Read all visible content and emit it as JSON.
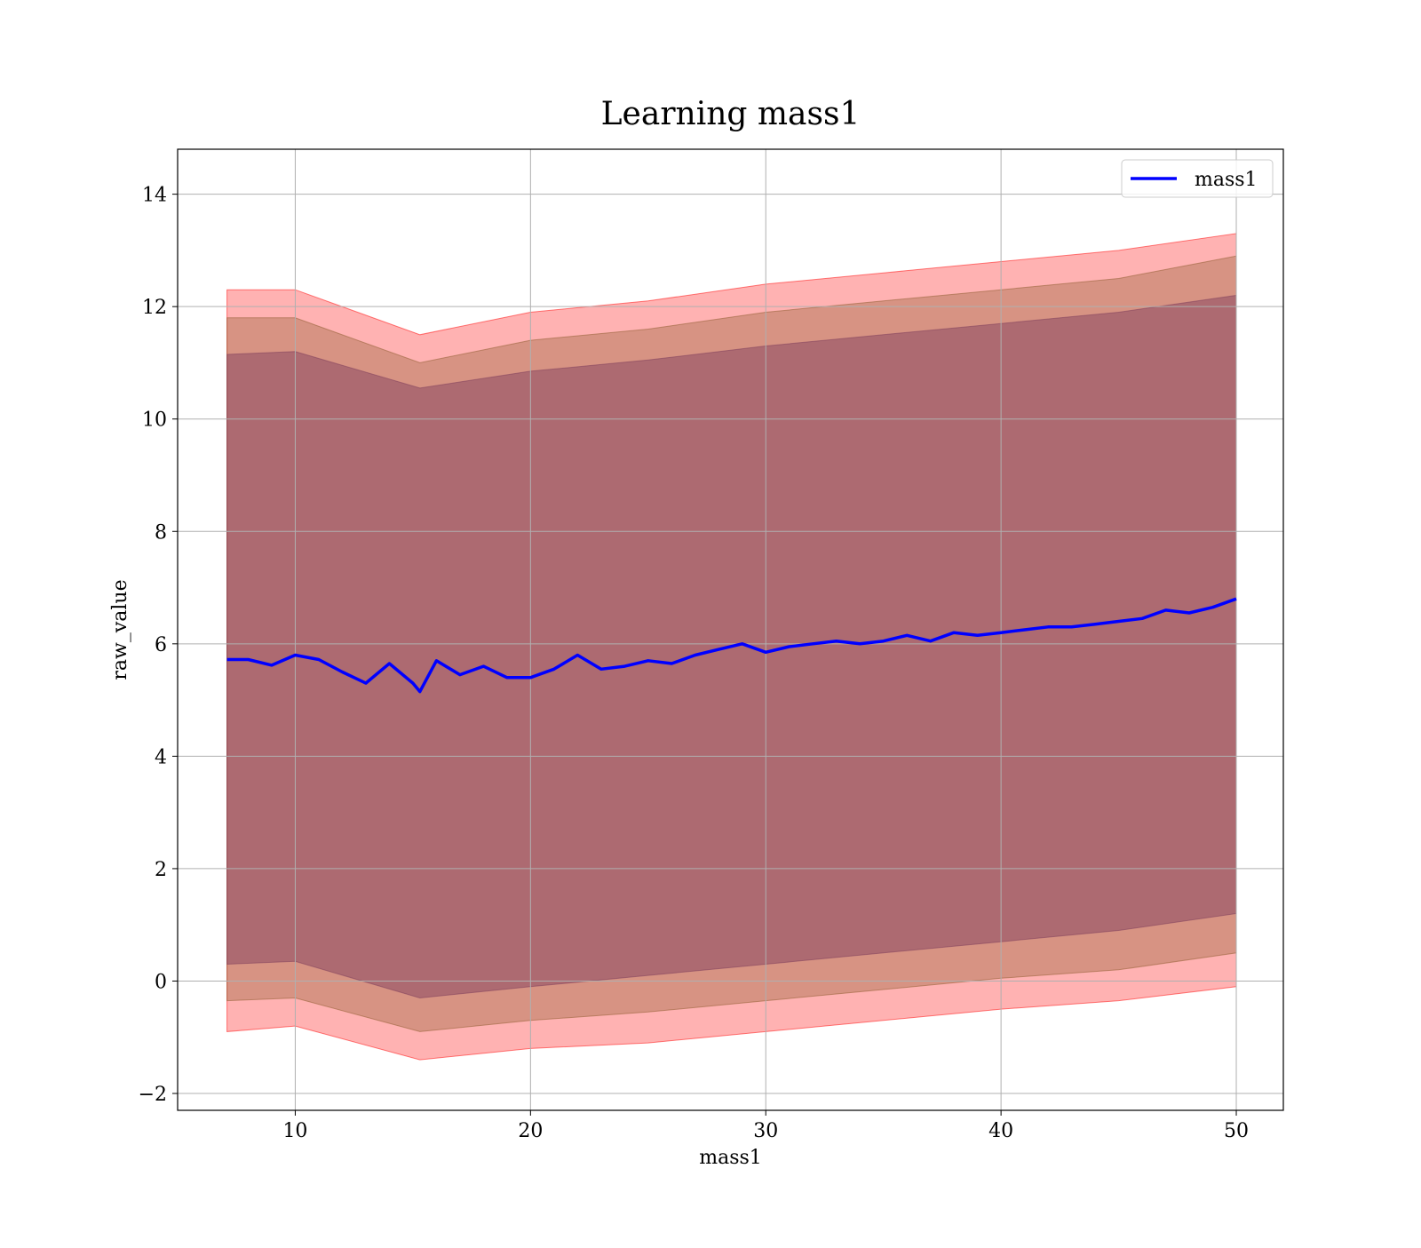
{
  "chart_data": {
    "type": "area",
    "title": "Learning mass1",
    "xlabel": "mass1",
    "ylabel": "raw_value",
    "xlim": [
      5,
      52
    ],
    "ylim": [
      -2.3,
      14.8
    ],
    "xticks": [
      10,
      20,
      30,
      40,
      50
    ],
    "yticks": [
      -2,
      0,
      2,
      4,
      6,
      8,
      10,
      12,
      14
    ],
    "xtick_labels": [
      "10",
      "20",
      "30",
      "40",
      "50"
    ],
    "ytick_labels": [
      "−2",
      "0",
      "2",
      "4",
      "6",
      "8",
      "10",
      "12",
      "14"
    ],
    "grid": true,
    "legend_position": "top-right",
    "series": [
      {
        "name": "mass1",
        "color": "#0000ff",
        "x": [
          7.1,
          8,
          9,
          10,
          11,
          12,
          13,
          14,
          15,
          15.3,
          16,
          17,
          18,
          19,
          20,
          21,
          22,
          23,
          24,
          25,
          26,
          27,
          28,
          29,
          30,
          31,
          32,
          33,
          34,
          35,
          36,
          37,
          38,
          39,
          40,
          41,
          42,
          43,
          44,
          45,
          46,
          47,
          48,
          49,
          50
        ],
        "values": [
          5.72,
          5.72,
          5.62,
          5.8,
          5.72,
          5.5,
          5.3,
          5.65,
          5.3,
          5.15,
          5.7,
          5.45,
          5.6,
          5.4,
          5.4,
          5.55,
          5.8,
          5.55,
          5.6,
          5.7,
          5.65,
          5.8,
          5.9,
          6.0,
          5.85,
          5.95,
          6.0,
          6.05,
          6.0,
          6.05,
          6.15,
          6.05,
          6.2,
          6.15,
          6.2,
          6.25,
          6.3,
          6.3,
          6.35,
          6.4,
          6.45,
          6.6,
          6.55,
          6.65,
          6.8
        ]
      }
    ],
    "bands": [
      {
        "color": "#ff0000",
        "opacity": 0.3,
        "x": [
          7.1,
          10,
          15.3,
          20,
          25,
          30,
          35,
          40,
          45,
          50
        ],
        "upper": [
          12.3,
          12.3,
          11.5,
          11.9,
          12.1,
          12.4,
          12.6,
          12.8,
          13.0,
          13.3
        ],
        "lower": [
          -0.9,
          -0.8,
          -1.4,
          -1.2,
          -1.1,
          -0.9,
          -0.7,
          -0.5,
          -0.35,
          -0.1
        ]
      },
      {
        "color": "#8b5a2b",
        "opacity": 0.35,
        "x": [
          7.1,
          10,
          15.3,
          20,
          25,
          30,
          35,
          40,
          45,
          50
        ],
        "upper": [
          11.8,
          11.8,
          11.0,
          11.4,
          11.6,
          11.9,
          12.1,
          12.3,
          12.5,
          12.9
        ],
        "lower": [
          -0.35,
          -0.3,
          -0.9,
          -0.7,
          -0.55,
          -0.35,
          -0.15,
          0.05,
          0.2,
          0.5
        ]
      },
      {
        "color": "#7a3a5a",
        "opacity": 0.45,
        "x": [
          7.1,
          10,
          15.3,
          20,
          25,
          30,
          35,
          40,
          45,
          50
        ],
        "upper": [
          11.15,
          11.2,
          10.55,
          10.85,
          11.05,
          11.3,
          11.5,
          11.7,
          11.9,
          12.2
        ],
        "lower": [
          0.3,
          0.35,
          -0.3,
          -0.1,
          0.1,
          0.3,
          0.5,
          0.7,
          0.9,
          1.2
        ]
      }
    ]
  }
}
